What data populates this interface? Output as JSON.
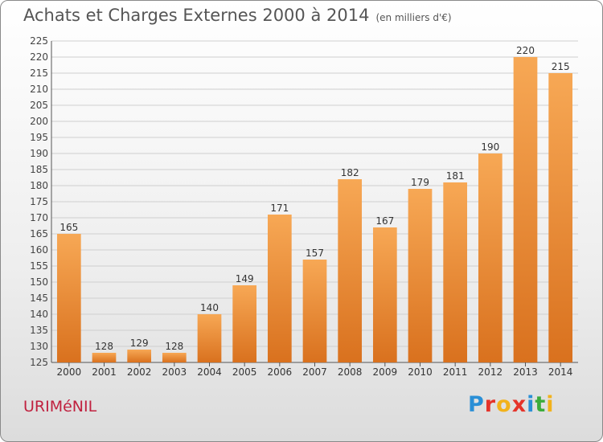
{
  "header": {
    "title": "Achats et Charges Externes 2000 à 2014",
    "unit": "(en milliers d'€)"
  },
  "footer": {
    "commune": "URIMéNIL",
    "logo_letters": [
      "P",
      "r",
      "o",
      "x",
      "i",
      "t",
      "i"
    ]
  },
  "colors": {
    "bar_light": "#f7a855",
    "bar_dark": "#d9711e",
    "grid": "#cfcfcf",
    "title": "#555555",
    "commune": "#c0213f",
    "logo": [
      "#2a8fd6",
      "#e5332a",
      "#f2b21b",
      "#e5332a",
      "#2a8fd6",
      "#3cac3c",
      "#f2b21b"
    ]
  },
  "chart_data": {
    "type": "bar",
    "categories": [
      "2000",
      "2001",
      "2002",
      "2003",
      "2004",
      "2005",
      "2006",
      "2007",
      "2008",
      "2009",
      "2010",
      "2011",
      "2012",
      "2013",
      "2014"
    ],
    "values": [
      165,
      128,
      129,
      128,
      140,
      149,
      171,
      157,
      182,
      167,
      179,
      181,
      190,
      220,
      215
    ],
    "ylim": [
      125,
      225
    ],
    "yticks": [
      125,
      130,
      135,
      140,
      145,
      150,
      155,
      160,
      165,
      170,
      175,
      180,
      185,
      190,
      195,
      200,
      205,
      210,
      215,
      220,
      225
    ],
    "grid": true,
    "data_labels": true
  }
}
